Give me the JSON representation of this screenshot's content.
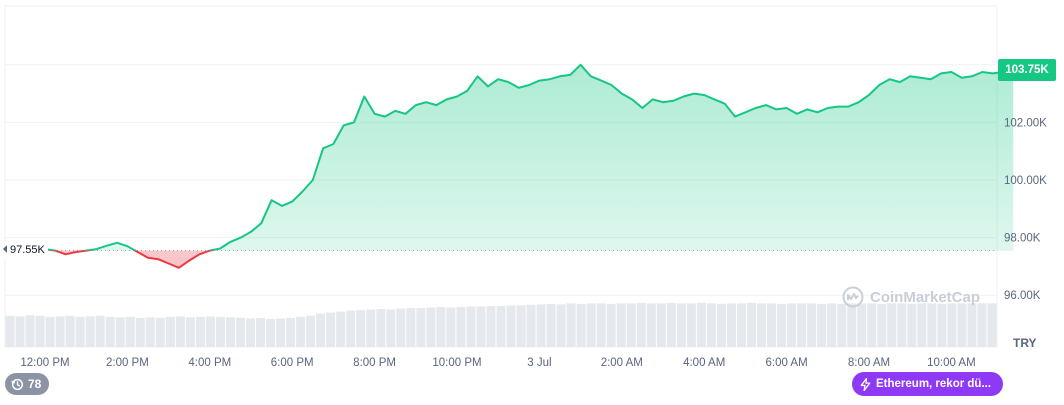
{
  "chart_data": {
    "type": "area",
    "currency": "TRY",
    "open_price": 97.55,
    "open_label": "97.55K",
    "current_label": "103.75K",
    "y_ticks": [
      {
        "value": 96,
        "label": "96.00K"
      },
      {
        "value": 98,
        "label": "98.00K"
      },
      {
        "value": 100,
        "label": "100.00K"
      },
      {
        "value": 102,
        "label": "102.00K"
      }
    ],
    "x_ticks": [
      "12:00 PM",
      "2:00 PM",
      "4:00 PM",
      "6:00 PM",
      "8:00 PM",
      "10:00 PM",
      "3 Jul",
      "2:00 AM",
      "4:00 AM",
      "6:00 AM",
      "8:00 AM",
      "10:00 AM"
    ],
    "ylim": [
      95.5,
      104.5
    ],
    "hours": [
      11,
      11.25,
      11.5,
      11.75,
      12,
      12.25,
      12.5,
      12.75,
      13,
      13.25,
      13.5,
      13.75,
      14,
      14.25,
      14.5,
      14.75,
      15,
      15.25,
      15.5,
      15.75,
      16,
      16.25,
      16.5,
      16.75,
      17,
      17.25,
      17.5,
      17.75,
      18,
      18.25,
      18.5,
      18.75,
      19,
      19.25,
      19.5,
      19.75,
      20,
      20.25,
      20.5,
      20.75,
      21,
      21.25,
      21.5,
      21.75,
      22,
      22.25,
      22.5,
      22.75,
      23,
      23.25,
      23.5,
      23.75,
      24,
      24.25,
      24.5,
      24.75,
      25,
      25.25,
      25.5,
      25.75,
      26,
      26.25,
      26.5,
      26.75,
      27,
      27.25,
      27.5,
      27.75,
      28,
      28.25,
      28.5,
      28.75,
      29,
      29.25,
      29.5,
      29.75,
      30,
      30.25,
      30.5,
      30.75,
      31,
      31.25,
      31.5,
      31.75,
      32,
      32.25,
      32.5,
      32.75,
      33,
      33.25,
      33.5,
      33.75,
      34,
      34.25,
      34.5,
      34.75,
      35,
      35.25,
      35.5
    ],
    "prices": [
      97.55,
      97.6,
      97.55,
      97.45,
      97.6,
      97.55,
      97.42,
      97.5,
      97.55,
      97.6,
      97.72,
      97.82,
      97.7,
      97.5,
      97.3,
      97.25,
      97.1,
      96.95,
      97.2,
      97.42,
      97.55,
      97.62,
      97.85,
      98.0,
      98.2,
      98.5,
      99.3,
      99.1,
      99.25,
      99.6,
      100.0,
      101.1,
      101.25,
      101.9,
      102.0,
      102.9,
      102.3,
      102.2,
      102.4,
      102.3,
      102.6,
      102.7,
      102.6,
      102.8,
      102.9,
      103.1,
      103.6,
      103.25,
      103.5,
      103.4,
      103.2,
      103.3,
      103.45,
      103.5,
      103.6,
      103.65,
      104.0,
      103.6,
      103.45,
      103.3,
      103.0,
      102.8,
      102.5,
      102.8,
      102.7,
      102.75,
      102.9,
      103.0,
      102.95,
      102.8,
      102.65,
      102.2,
      102.35,
      102.5,
      102.6,
      102.45,
      102.5,
      102.3,
      102.45,
      102.35,
      102.5,
      102.55,
      102.55,
      102.7,
      102.95,
      103.3,
      103.5,
      103.4,
      103.6,
      103.55,
      103.5,
      103.7,
      103.75,
      103.55,
      103.6,
      103.75,
      103.7,
      103.75,
      103.75
    ],
    "volume": [
      60,
      59,
      61,
      60,
      58,
      59,
      60,
      58,
      59,
      60,
      58,
      57,
      58,
      56,
      57,
      56,
      58,
      59,
      57,
      58,
      59,
      58,
      57,
      56,
      55,
      56,
      54,
      55,
      56,
      58,
      60,
      64,
      66,
      68,
      70,
      71,
      72,
      73,
      72,
      74,
      75,
      75,
      76,
      77,
      76,
      77,
      78,
      78,
      79,
      79,
      80,
      80,
      81,
      82,
      83,
      82,
      84,
      83,
      84,
      84,
      83,
      84,
      84,
      85,
      84,
      84,
      85,
      84,
      84,
      85,
      84,
      83,
      84,
      84,
      85,
      84,
      84,
      83,
      84,
      84,
      84,
      83,
      84,
      83,
      84,
      84,
      84,
      83,
      84,
      84,
      83,
      84,
      84,
      83,
      84,
      84,
      84,
      84,
      84
    ],
    "colors": {
      "up": "#16c784",
      "down": "#ea3943",
      "grid": "#eff2f5",
      "volume": "#e5e8ec"
    }
  },
  "watermark": "CoinMarketCap",
  "views": {
    "icon": "history-icon",
    "count": "78"
  },
  "news": {
    "icon": "lightning-icon",
    "text": "Ethereum, rekor dü..."
  }
}
